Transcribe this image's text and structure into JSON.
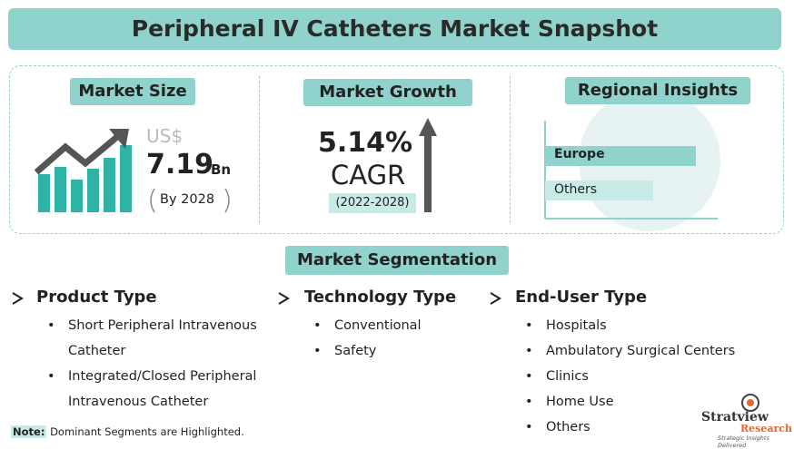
{
  "title": "Peripheral IV Catheters Market Snapshot",
  "market_size": {
    "label": "Market Size",
    "currency": "US$",
    "value": "7.19",
    "unit": "Bn",
    "year": "By 2028"
  },
  "market_growth": {
    "label": "Market Growth",
    "value": "5.14",
    "unit": "%",
    "metric": "CAGR",
    "period": "(2022-2028)"
  },
  "regional": {
    "label": "Regional Insights",
    "regions": [
      "Europe",
      "Others"
    ]
  },
  "segmentation": {
    "label": "Market Segmentation",
    "columns": [
      {
        "title": "Product Type",
        "items": [
          "Short Peripheral Intravenous Catheter",
          "Integrated/Closed Peripheral Intravenous Catheter"
        ]
      },
      {
        "title": "Technology Type",
        "items": [
          "Conventional",
          "Safety"
        ]
      },
      {
        "title": "End-User Type",
        "items": [
          "Hospitals",
          "Ambulatory Surgical Centers",
          "Clinics",
          "Home Use",
          "Others"
        ]
      }
    ]
  },
  "note": {
    "label": "Note:",
    "text": "Dominant Segments are Highlighted."
  },
  "logo": {
    "name": "Stratview",
    "sub": "Research",
    "tagline": "Strategic Insights Delivered"
  }
}
